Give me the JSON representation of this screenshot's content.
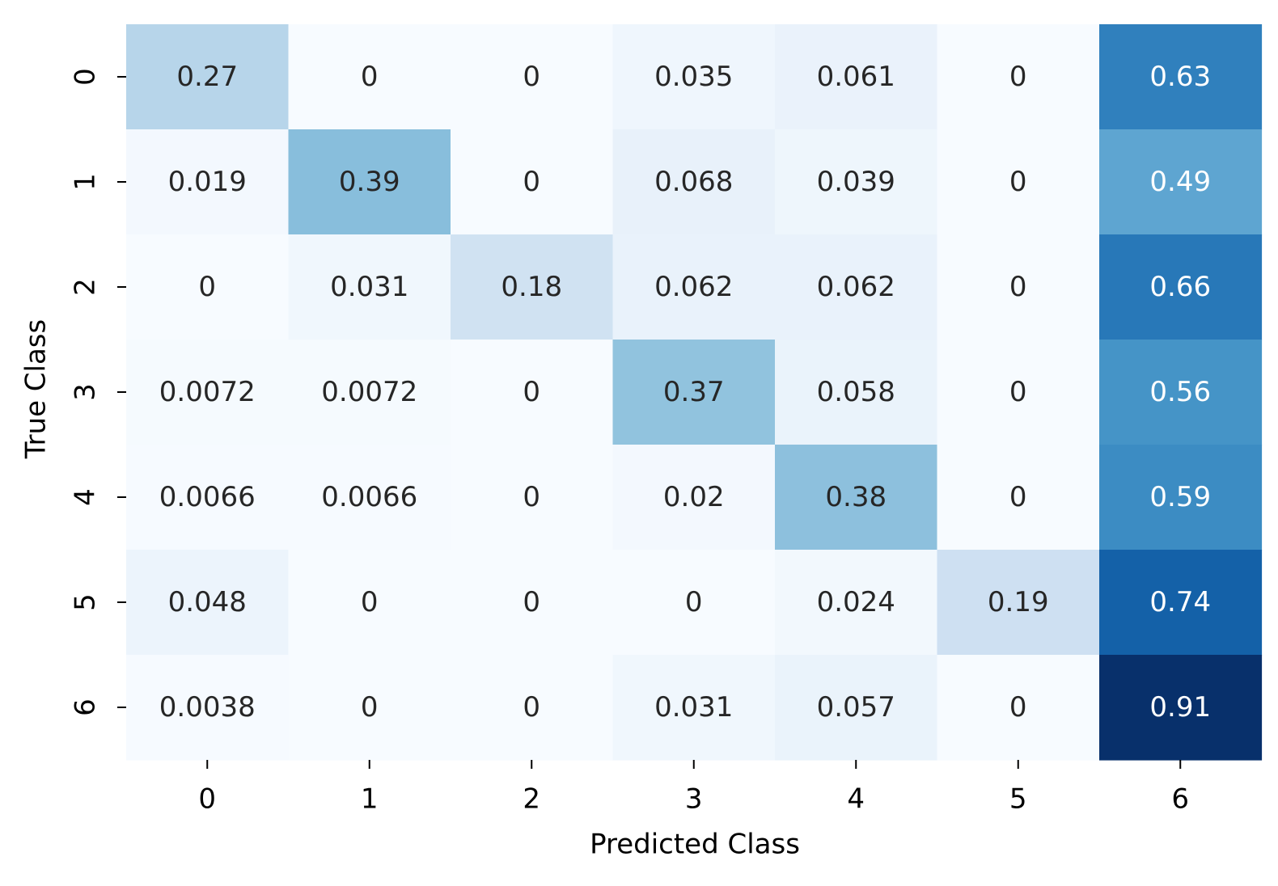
{
  "chart_data": {
    "type": "heatmap",
    "title": "",
    "xlabel": "Predicted Class",
    "ylabel": "True Class",
    "x_categories": [
      "0",
      "1",
      "2",
      "3",
      "4",
      "5",
      "6"
    ],
    "y_categories": [
      "0",
      "1",
      "2",
      "3",
      "4",
      "5",
      "6"
    ],
    "values": [
      [
        0.27,
        0,
        0,
        0.035,
        0.061,
        0,
        0.63
      ],
      [
        0.019,
        0.39,
        0,
        0.068,
        0.039,
        0,
        0.49
      ],
      [
        0,
        0.031,
        0.18,
        0.062,
        0.062,
        0,
        0.66
      ],
      [
        0.0072,
        0.0072,
        0,
        0.37,
        0.058,
        0,
        0.56
      ],
      [
        0.0066,
        0.0066,
        0,
        0.02,
        0.38,
        0,
        0.59
      ],
      [
        0.048,
        0,
        0,
        0,
        0.024,
        0.19,
        0.74
      ],
      [
        0.0038,
        0,
        0,
        0.031,
        0.057,
        0,
        0.91
      ]
    ],
    "value_labels": [
      [
        "0.27",
        "0",
        "0",
        "0.035",
        "0.061",
        "0",
        "0.63"
      ],
      [
        "0.019",
        "0.39",
        "0",
        "0.068",
        "0.039",
        "0",
        "0.49"
      ],
      [
        "0",
        "0.031",
        "0.18",
        "0.062",
        "0.062",
        "0",
        "0.66"
      ],
      [
        "0.0072",
        "0.0072",
        "0",
        "0.37",
        "0.058",
        "0",
        "0.56"
      ],
      [
        "0.0066",
        "0.0066",
        "0",
        "0.02",
        "0.38",
        "0",
        "0.59"
      ],
      [
        "0.048",
        "0",
        "0",
        "0",
        "0.024",
        "0.19",
        "0.74"
      ],
      [
        "0.0038",
        "0",
        "0",
        "0.031",
        "0.057",
        "0",
        "0.91"
      ]
    ],
    "colormap": "Blues",
    "color_range": [
      0,
      0.91
    ],
    "colorbar": false,
    "text_color_dark": "#262626",
    "text_color_light": "#ffffff"
  }
}
